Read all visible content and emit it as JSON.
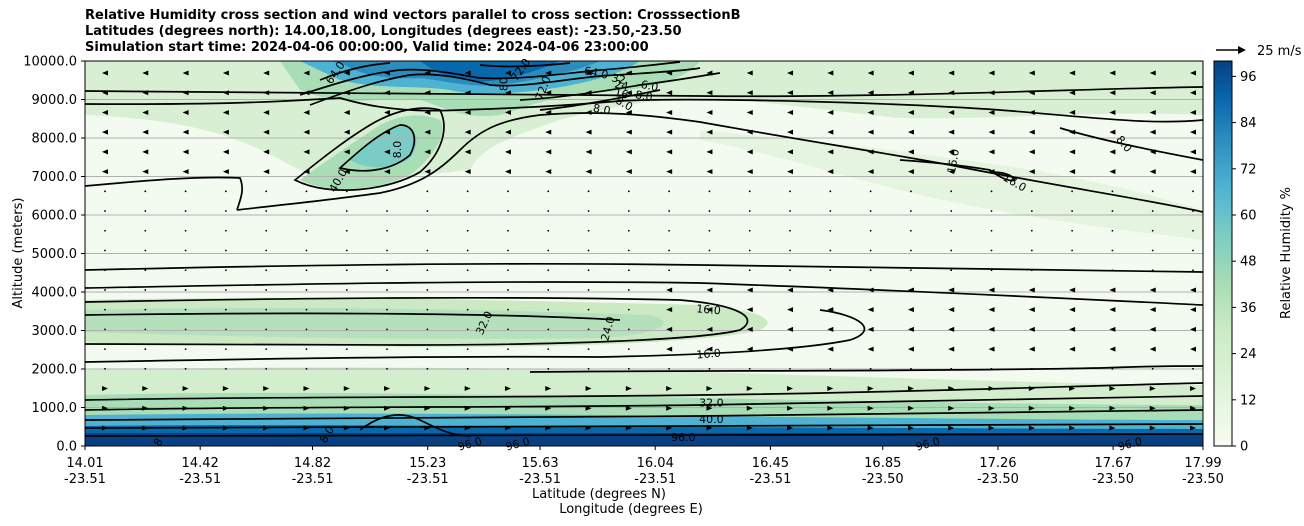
{
  "header": {
    "title_lines": [
      "Relative Humidity cross section and wind vectors parallel to cross section: CrosssectionB",
      "Latitudes (degrees north): 14.00,18.00, Longitudes (degrees east): -23.50,-23.50",
      "Simulation start time: 2024-04-06 00:00:00, Valid time: 2024-04-06 23:00:00"
    ]
  },
  "chart_data": {
    "type": "heatmap",
    "subtype": "filled contour cross section with contour lines and wind vectors",
    "xlabel": "Latitude (degrees N)",
    "xlabel2": "Longitude (degrees E)",
    "ylabel": "Altitude (meters)",
    "ylim": [
      0,
      10000
    ],
    "y_ticks": [
      "0.0",
      "1000.0",
      "2000.0",
      "3000.0",
      "4000.0",
      "5000.0",
      "6000.0",
      "7000.0",
      "8000.0",
      "9000.0",
      "10000.0"
    ],
    "x_ticks_lat": [
      "14.01",
      "14.42",
      "14.82",
      "15.23",
      "15.63",
      "16.04",
      "16.45",
      "16.85",
      "17.26",
      "17.67",
      "17.99"
    ],
    "x_ticks_lon": [
      "-23.51",
      "-23.51",
      "-23.51",
      "-23.51",
      "-23.51",
      "-23.51",
      "-23.51",
      "-23.50",
      "-23.50",
      "-23.50",
      "-23.50"
    ],
    "x_tick_values": [
      14.01,
      14.42,
      14.82,
      15.23,
      15.63,
      16.04,
      16.45,
      16.85,
      17.26,
      17.67,
      17.99
    ],
    "xlim": [
      14.01,
      17.99
    ],
    "grid": "horizontal",
    "colorbar": {
      "label": "Relative Humidity %",
      "range": [
        0,
        100
      ],
      "ticks": [
        "0",
        "12",
        "24",
        "36",
        "48",
        "60",
        "72",
        "84",
        "96"
      ],
      "colormap": "GnBu",
      "low_color": "#f7fcf0",
      "high_color": "#084081"
    },
    "quiver_key": {
      "label": "25 m/s"
    },
    "contour_labels": [
      {
        "text": "64.0",
        "lat": 14.9,
        "alt": 9700,
        "rot": -55
      },
      {
        "text": "72.0",
        "lat": 15.56,
        "alt": 9780,
        "rot": -55
      },
      {
        "text": "80",
        "lat": 15.5,
        "alt": 9400,
        "rot": -90
      },
      {
        "text": "72.0",
        "lat": 15.64,
        "alt": 9300,
        "rot": -70
      },
      {
        "text": "64.0",
        "lat": 15.83,
        "alt": 9700,
        "rot": 12
      },
      {
        "text": "32",
        "lat": 15.91,
        "alt": 9540,
        "rot": 12
      },
      {
        "text": "24",
        "lat": 15.92,
        "alt": 9380,
        "rot": 12
      },
      {
        "text": "16",
        "lat": 15.92,
        "alt": 9160,
        "rot": 12
      },
      {
        "text": "8.0",
        "lat": 15.85,
        "alt": 8750,
        "rot": 10
      },
      {
        "text": "8.0",
        "lat": 15.93,
        "alt": 8900,
        "rot": 30
      },
      {
        "text": "8.0",
        "lat": 16.0,
        "alt": 9100,
        "rot": 10
      },
      {
        "text": "6.0",
        "lat": 16.02,
        "alt": 9360,
        "rot": 12
      },
      {
        "text": "40.0",
        "lat": 14.91,
        "alt": 6900,
        "rot": -60
      },
      {
        "text": "8.0",
        "lat": 15.12,
        "alt": 7700,
        "rot": -90
      },
      {
        "text": "16.0",
        "lat": 17.1,
        "alt": 7400,
        "rot": -80
      },
      {
        "text": "16.0",
        "lat": 17.32,
        "alt": 6850,
        "rot": 30
      },
      {
        "text": "8.0",
        "lat": 17.71,
        "alt": 7850,
        "rot": 50
      },
      {
        "text": "32.0",
        "lat": 15.43,
        "alt": 3200,
        "rot": -65
      },
      {
        "text": "24.0",
        "lat": 15.87,
        "alt": 3050,
        "rot": -75
      },
      {
        "text": "16.0",
        "lat": 16.23,
        "alt": 3550,
        "rot": 5
      },
      {
        "text": "16.0",
        "lat": 16.23,
        "alt": 2400,
        "rot": -5
      },
      {
        "text": "32.0",
        "lat": 16.24,
        "alt": 1130,
        "rot": 0
      },
      {
        "text": "40.0",
        "lat": 16.24,
        "alt": 700,
        "rot": 0
      },
      {
        "text": "96.0",
        "lat": 16.14,
        "alt": 230,
        "rot": 0
      },
      {
        "text": "96.0",
        "lat": 15.38,
        "alt": 60,
        "rot": -15
      },
      {
        "text": "96.0",
        "lat": 15.55,
        "alt": 60,
        "rot": -15
      },
      {
        "text": "96.0",
        "lat": 17.01,
        "alt": 60,
        "rot": -15
      },
      {
        "text": "96.0",
        "lat": 17.73,
        "alt": 60,
        "rot": -15
      },
      {
        "text": "8.0",
        "lat": 14.87,
        "alt": 300,
        "rot": -60
      },
      {
        "text": "8",
        "lat": 14.27,
        "alt": 100,
        "rot": -60
      }
    ]
  }
}
